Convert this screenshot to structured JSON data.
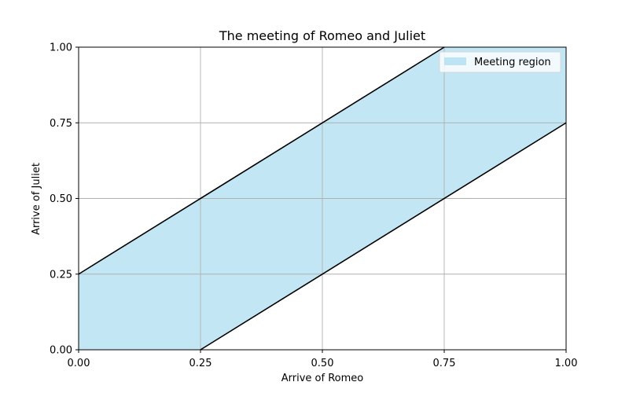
{
  "chart_data": {
    "type": "area",
    "title": "The meeting of Romeo and Juliet",
    "xlabel": "Arrive of Romeo",
    "ylabel": "Arrive of Juliet",
    "xlim": [
      0,
      1
    ],
    "ylim": [
      0,
      1
    ],
    "xticks": [
      0,
      0.25,
      0.5,
      0.75,
      1
    ],
    "yticks": [
      0,
      0.25,
      0.5,
      0.75,
      1
    ],
    "xtick_labels": [
      "0.00",
      "0.25",
      "0.50",
      "0.75",
      "1.00"
    ],
    "ytick_labels": [
      "0.00",
      "0.25",
      "0.50",
      "0.75",
      "1.00"
    ],
    "grid": true,
    "legend": {
      "position": "top-right",
      "entries": [
        "Meeting region"
      ]
    },
    "series": [
      {
        "name": "Meeting region",
        "kind": "fill",
        "color": "#87CEEB",
        "polygon": [
          [
            0,
            0
          ],
          [
            0.25,
            0
          ],
          [
            1,
            0.75
          ],
          [
            1,
            1
          ],
          [
            0.75,
            1
          ],
          [
            0,
            0.25
          ]
        ]
      },
      {
        "kind": "line",
        "color": "#000000",
        "x": [
          0,
          0.75
        ],
        "y": [
          0.25,
          1
        ]
      },
      {
        "kind": "line",
        "color": "#000000",
        "x": [
          0.25,
          1
        ],
        "y": [
          0,
          0.75
        ]
      }
    ]
  }
}
